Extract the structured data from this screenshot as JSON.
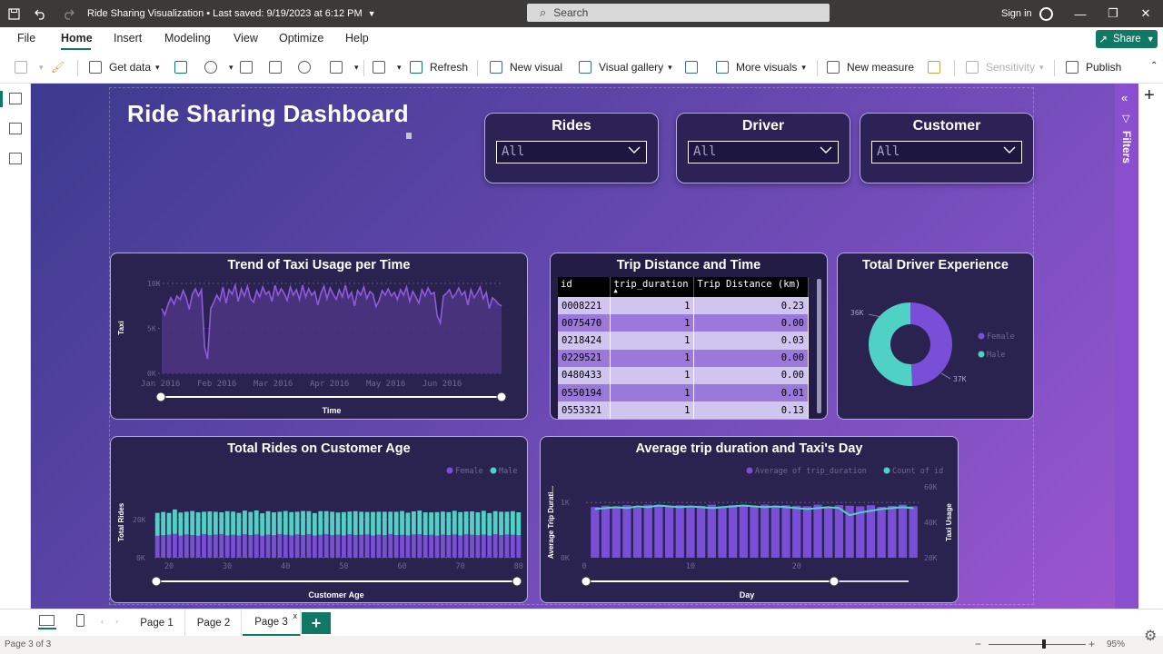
{
  "titlebar": {
    "doc_title": "Ride Sharing Visualization • Last saved: 9/19/2023 at 6:12 PM",
    "search_placeholder": "Search",
    "signin": "Sign in"
  },
  "menu": {
    "items": [
      "File",
      "Home",
      "Insert",
      "Modeling",
      "View",
      "Optimize",
      "Help"
    ],
    "active": "Home",
    "share": "Share"
  },
  "ribbon": {
    "get_data": "Get data",
    "refresh": "Refresh",
    "new_visual": "New visual",
    "visual_gallery": "Visual gallery",
    "more_visuals": "More visuals",
    "new_measure": "New measure",
    "sensitivity": "Sensitivity",
    "publish": "Publish"
  },
  "report": {
    "title": "Ride Sharing Dashboard",
    "slicers": [
      {
        "title": "Rides",
        "value": "All"
      },
      {
        "title": "Driver",
        "value": "All"
      },
      {
        "title": "Customer",
        "value": "All"
      }
    ]
  },
  "trend_chart": {
    "title": "Trend of Taxi Usage per Time",
    "xlabel": "Time",
    "ylabel": "Taxi",
    "yticks": [
      "10K",
      "5K",
      "0K"
    ],
    "xticks": [
      "Jan 2016",
      "Feb 2016",
      "Mar 2016",
      "Apr 2016",
      "May 2016",
      "Jun 2016"
    ]
  },
  "trip_table": {
    "title": "Trip Distance and Time",
    "columns": [
      "id",
      "trip_duration",
      "Trip Distance (km)"
    ],
    "rows": [
      [
        "0008221",
        "1",
        "0.23"
      ],
      [
        "0075470",
        "1",
        "0.00"
      ],
      [
        "0218424",
        "1",
        "0.03"
      ],
      [
        "0229521",
        "1",
        "0.00"
      ],
      [
        "0480433",
        "1",
        "0.00"
      ],
      [
        "0550194",
        "1",
        "0.01"
      ],
      [
        "0553321",
        "1",
        "0.13"
      ]
    ]
  },
  "driver_chart": {
    "title": "Total Driver Experience",
    "legend": [
      "Female",
      "Male"
    ],
    "labels": [
      "36K",
      "37K"
    ]
  },
  "age_chart": {
    "title": "Total Rides on Customer Age",
    "legend": [
      "Female",
      "Male"
    ],
    "xlabel": "Customer Age",
    "ylabel": "Total Rides",
    "yticks": [
      "20K",
      "0K"
    ],
    "xticks": [
      "20",
      "30",
      "40",
      "50",
      "60",
      "70",
      "80"
    ]
  },
  "day_chart": {
    "title": "Average trip duration and Taxi's Day",
    "legend": [
      "Average of trip_duration",
      "Count of id"
    ],
    "xlabel": "Day",
    "ylabel_left": "Average Trip Durati...",
    "ylabel_right": "Taxi Usage",
    "yticks_left": [
      "1K",
      "0K"
    ],
    "yticks_right": [
      "60K",
      "40K",
      "20K"
    ],
    "xticks": [
      "0",
      "10",
      "20"
    ]
  },
  "chart_data": [
    {
      "type": "area",
      "title": "Trend of Taxi Usage per Time",
      "xlabel": "Time",
      "ylabel": "Taxi",
      "ylim": [
        0,
        10000
      ],
      "x_start": "Jan 2016",
      "x_end": "Jun 2016",
      "values": [
        7200,
        6500,
        7600,
        8400,
        7700,
        8600,
        8200,
        9200,
        8400,
        7100,
        8800,
        9400,
        8600,
        9300,
        2900,
        1600,
        7200,
        7900,
        8700,
        8100,
        9600,
        7800,
        9300,
        8800,
        9800,
        8000,
        9400,
        8600,
        9700,
        8300,
        7900,
        9200,
        8500,
        9600,
        8800,
        9100,
        8000,
        9800,
        8700,
        9400,
        8900,
        8100,
        9600,
        8700,
        9300,
        8200,
        9800,
        8500,
        9400,
        8700,
        9100,
        7600,
        8900,
        9700,
        8300,
        9500,
        8800,
        8200,
        9300,
        8500,
        9800,
        8400,
        9000,
        7500,
        9200,
        8700,
        9600,
        8300,
        9100,
        8800,
        7400,
        8100,
        9200,
        8700,
        9400,
        8600,
        9000,
        8200,
        9300,
        8700,
        9600,
        8000,
        9100,
        8500,
        7800,
        9300,
        8600,
        9500,
        8800,
        9000,
        6400,
        5600,
        8600,
        8900,
        9300,
        8400,
        8800,
        9500,
        8700,
        9100,
        7600,
        9300,
        8400,
        8900,
        9600,
        8300,
        9000,
        7200,
        8400,
        8100,
        7700,
        7500
      ]
    },
    {
      "type": "pie",
      "title": "Total Driver Experience",
      "categories": [
        "Female",
        "Male"
      ],
      "values": [
        36000,
        37000
      ]
    },
    {
      "type": "bar",
      "title": "Total Rides on Customer Age",
      "xlabel": "Customer Age",
      "ylabel": "Total Rides",
      "x_start": 18,
      "x_end": 80,
      "series": [
        {
          "name": "Female",
          "values": [
            11500,
            11800,
            12000,
            12500,
            11600,
            12200,
            11900,
            11500,
            12300,
            11800,
            12100,
            12400,
            11700,
            12000,
            11600,
            12300,
            11900,
            12200,
            11500,
            12100,
            11800,
            12400,
            12000,
            11700,
            12200,
            11900,
            12300,
            11600,
            12000,
            12400,
            11800,
            12100,
            11700,
            12300,
            11900,
            12000,
            12200,
            11600,
            12100,
            11800,
            12400,
            11900,
            12000,
            11700,
            12200,
            12300,
            11800,
            12000,
            11600,
            12100,
            11900,
            12200,
            11700,
            12300,
            12000,
            11800,
            12100,
            11600,
            12300,
            11900,
            12200,
            12000,
            11800
          ]
        },
        {
          "name": "Male",
          "values": [
            12000,
            12200,
            11500,
            12800,
            12100,
            11900,
            12600,
            12300,
            11800,
            12500,
            12000,
            11400,
            12700,
            12200,
            11900,
            12400,
            12100,
            12600,
            11800,
            12300,
            12000,
            11700,
            12500,
            12200,
            11900,
            12600,
            12100,
            11800,
            12400,
            12000,
            12300,
            11600,
            12200,
            11900,
            12500,
            12100,
            11800,
            12400,
            12000,
            12300,
            11700,
            12200,
            12500,
            11900,
            12100,
            12400,
            12000,
            11800,
            12300,
            12100,
            12000,
            12400,
            12200,
            11900,
            12300,
            12000,
            12500,
            11800,
            12100,
            12200,
            11900,
            12400,
            12000
          ]
        }
      ]
    },
    {
      "type": "bar",
      "title": "Average trip duration and Taxi's Day",
      "xlabel": "Day",
      "x_start": 1,
      "x_end": 31,
      "series": [
        {
          "name": "Average of trip_duration",
          "values": [
            920,
            940,
            930,
            950,
            910,
            960,
            940,
            930,
            950,
            920,
            940,
            960,
            930,
            950,
            940,
            920,
            960,
            930,
            950,
            940,
            930,
            960,
            920,
            950,
            940,
            930,
            950,
            920,
            940,
            960,
            930
          ]
        },
        {
          "name": "Count of id",
          "values": [
            47500,
            48000,
            48500,
            48000,
            49000,
            48500,
            49500,
            49000,
            48500,
            49000,
            48500,
            48000,
            48500,
            49000,
            49500,
            49000,
            48500,
            49000,
            48500,
            48000,
            47500,
            48000,
            48500,
            48000,
            44000,
            45500,
            46500,
            47500,
            48000,
            48500,
            48000
          ]
        }
      ]
    }
  ],
  "pages": {
    "tabs": [
      "Page 1",
      "Page 2",
      "Page 3"
    ],
    "active": "Page 3",
    "status": "Page 3 of 3",
    "zoom": "95%"
  },
  "colors": {
    "accent": "#117865",
    "purple": "#8a4fcf",
    "teal": "#4fd1c5",
    "violet": "#7a4fd8"
  }
}
